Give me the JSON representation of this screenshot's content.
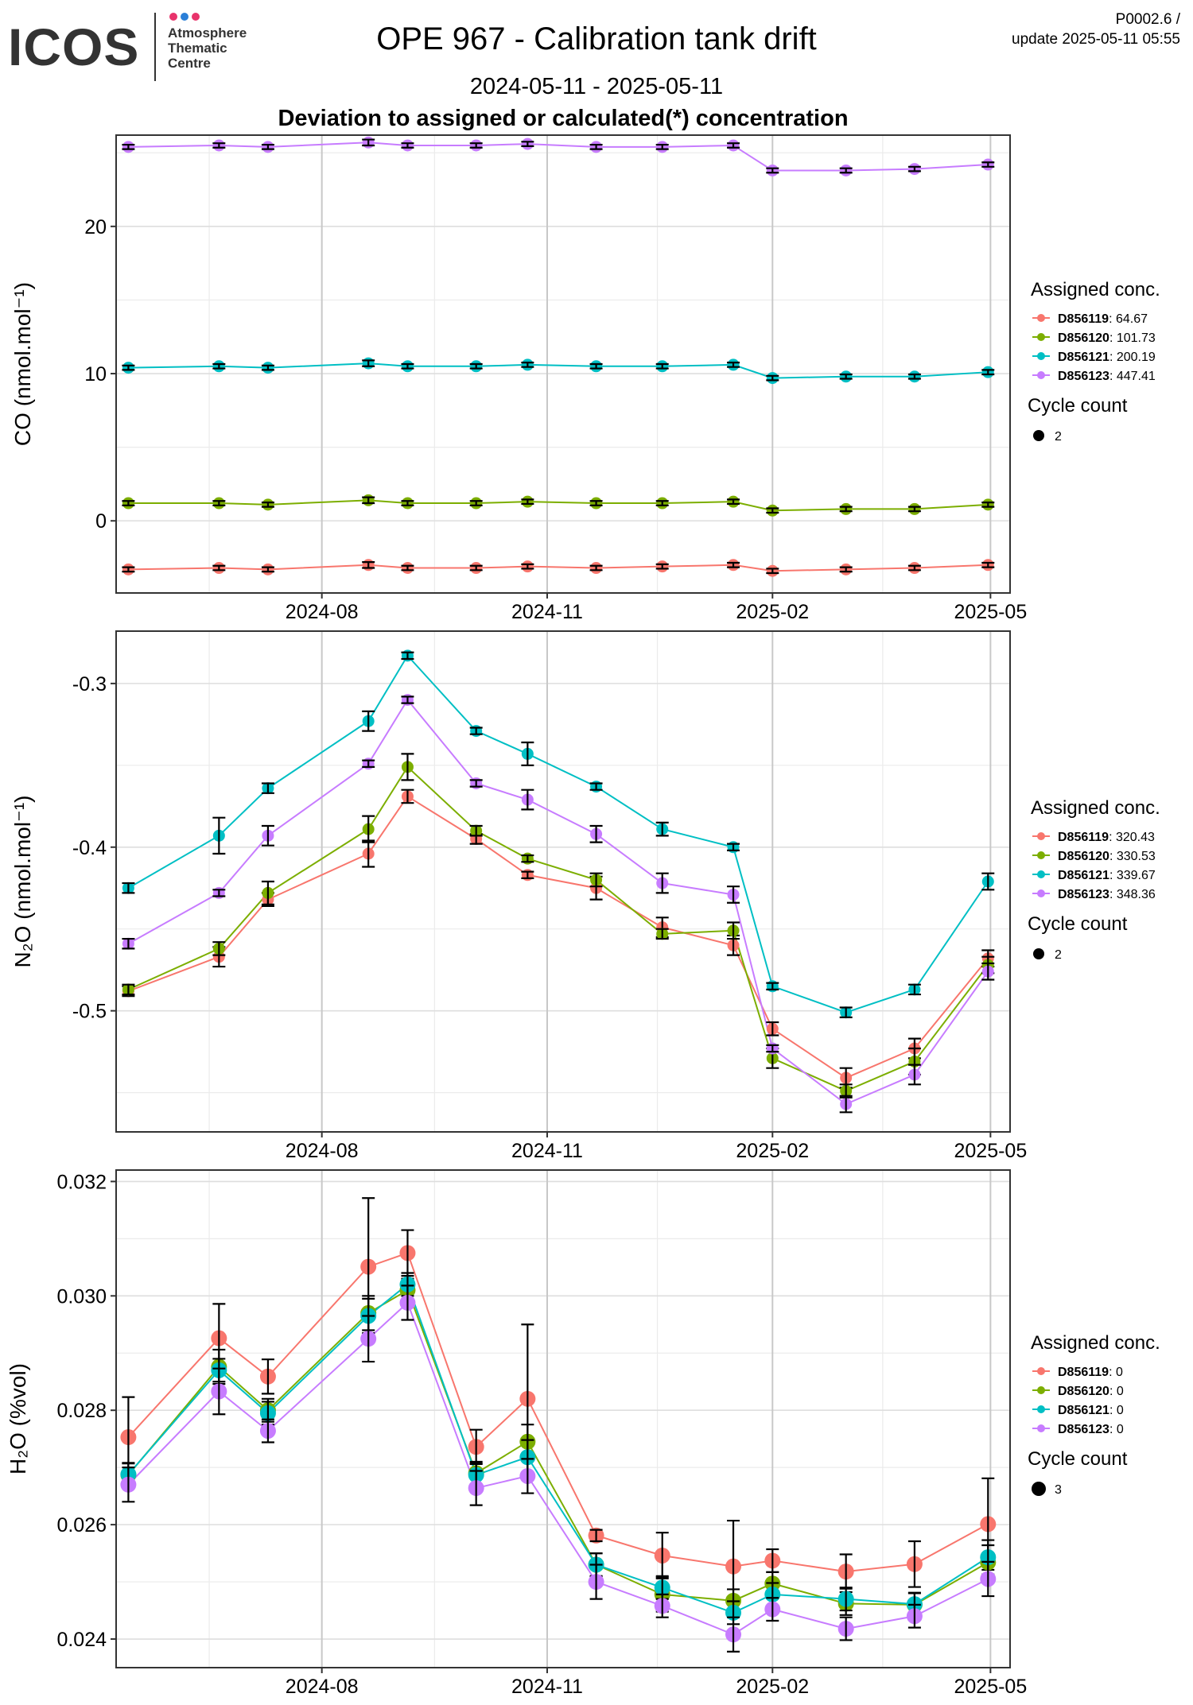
{
  "logo": {
    "text": "ICOS",
    "subtitle_lines": [
      "Atmosphere",
      "Thematic",
      "Centre"
    ],
    "dot_colors": [
      "#e8336b",
      "#2a7fd8",
      "#e8336b"
    ]
  },
  "header": {
    "title": "OPE 967 - Calibration tank drift",
    "date_range": "2024-05-11 - 2025-05-11",
    "subtitle": "Deviation to assigned or calculated(*) concentration",
    "code": "P0002.6 /",
    "update": "update  2025-05-11 05:55"
  },
  "series_colors": [
    "#F8766D",
    "#7CAE00",
    "#00BFC4",
    "#C77CFF"
  ],
  "chart_data": [
    {
      "type": "line",
      "ylabel": "CO (nmol.mol⁻¹)",
      "ylim": [
        -4.9,
        26.2
      ],
      "yticks": [
        0,
        10,
        20
      ],
      "ytick_labels": [
        "0",
        "10",
        "20"
      ],
      "xlim": [
        "2024-05-09",
        "2025-05-09"
      ],
      "xticks": [
        "2024-08-01",
        "2024-11-01",
        "2025-02-01",
        "2025-05-01"
      ],
      "xtick_labels": [
        "2024-08",
        "2024-11",
        "2025-02",
        "2025-05"
      ],
      "x": [
        "2024-05-14",
        "2024-06-20",
        "2024-07-10",
        "2024-08-20",
        "2024-09-05",
        "2024-10-03",
        "2024-10-24",
        "2024-11-21",
        "2024-12-18",
        "2025-01-16",
        "2025-02-01",
        "2025-03-03",
        "2025-03-31",
        "2025-04-30"
      ],
      "series": [
        {
          "name": "D856119",
          "values": [
            -3.3,
            -3.2,
            -3.3,
            -3.0,
            -3.2,
            -3.2,
            -3.1,
            -3.2,
            -3.1,
            -3.0,
            -3.4,
            -3.3,
            -3.2,
            -3.0
          ],
          "errors": [
            0.15,
            0.15,
            0.15,
            0.2,
            0.15,
            0.15,
            0.15,
            0.15,
            0.15,
            0.15,
            0.15,
            0.15,
            0.15,
            0.15
          ]
        },
        {
          "name": "D856120",
          "values": [
            1.2,
            1.2,
            1.1,
            1.4,
            1.2,
            1.2,
            1.3,
            1.2,
            1.2,
            1.3,
            0.7,
            0.8,
            0.8,
            1.1
          ],
          "errors": [
            0.15,
            0.15,
            0.15,
            0.2,
            0.15,
            0.15,
            0.15,
            0.15,
            0.15,
            0.15,
            0.15,
            0.15,
            0.15,
            0.15
          ]
        },
        {
          "name": "D856121",
          "values": [
            10.4,
            10.5,
            10.4,
            10.7,
            10.5,
            10.5,
            10.6,
            10.5,
            10.5,
            10.6,
            9.7,
            9.8,
            9.8,
            10.1
          ],
          "errors": [
            0.15,
            0.15,
            0.15,
            0.2,
            0.15,
            0.15,
            0.15,
            0.15,
            0.15,
            0.15,
            0.15,
            0.15,
            0.15,
            0.15
          ]
        },
        {
          "name": "D856123",
          "values": [
            25.4,
            25.5,
            25.4,
            25.7,
            25.5,
            25.5,
            25.6,
            25.4,
            25.4,
            25.5,
            23.8,
            23.8,
            23.9,
            24.2
          ],
          "errors": [
            0.15,
            0.15,
            0.15,
            0.2,
            0.15,
            0.15,
            0.15,
            0.15,
            0.15,
            0.15,
            0.15,
            0.15,
            0.15,
            0.15
          ]
        }
      ],
      "legend": {
        "title": "Assigned conc.",
        "entries": [
          {
            "tank": "D856119",
            "value": ": 64.67"
          },
          {
            "tank": "D856120",
            "value": ": 101.73"
          },
          {
            "tank": "D856121",
            "value": ": 200.19"
          },
          {
            "tank": "D856123",
            "value": ": 447.41"
          }
        ],
        "cycle_title": "Cycle count",
        "cycle_value": "2",
        "placement": "right"
      }
    },
    {
      "type": "line",
      "ylabel": "N₂O (nmol.mol⁻¹)",
      "ylim": [
        -0.574,
        -0.268
      ],
      "yticks": [
        -0.5,
        -0.4,
        -0.3
      ],
      "ytick_labels": [
        "-0.5",
        "-0.4",
        "-0.3"
      ],
      "xlim": [
        "2024-05-09",
        "2025-05-09"
      ],
      "xticks": [
        "2024-08-01",
        "2024-11-01",
        "2025-02-01",
        "2025-05-01"
      ],
      "xtick_labels": [
        "2024-08",
        "2024-11",
        "2025-02",
        "2025-05"
      ],
      "x": [
        "2024-05-14",
        "2024-06-20",
        "2024-07-10",
        "2024-08-20",
        "2024-09-05",
        "2024-10-03",
        "2024-10-24",
        "2024-11-21",
        "2024-12-18",
        "2025-01-16",
        "2025-02-01",
        "2025-03-03",
        "2025-03-31",
        "2025-04-30"
      ],
      "series": [
        {
          "name": "D856119",
          "values": [
            -0.488,
            -0.467,
            -0.432,
            -0.404,
            -0.369,
            -0.395,
            -0.417,
            -0.425,
            -0.449,
            -0.46,
            -0.511,
            -0.541,
            -0.523,
            -0.468
          ],
          "errors": [
            0.003,
            0.006,
            0.004,
            0.008,
            0.004,
            0.003,
            0.002,
            0.007,
            0.006,
            0.006,
            0.004,
            0.006,
            0.006,
            0.005
          ]
        },
        {
          "name": "D856120",
          "values": [
            -0.487,
            -0.462,
            -0.428,
            -0.389,
            -0.351,
            -0.39,
            -0.407,
            -0.42,
            -0.453,
            -0.451,
            -0.529,
            -0.549,
            -0.531,
            -0.472
          ],
          "errors": [
            0.003,
            0.004,
            0.007,
            0.008,
            0.008,
            0.003,
            0.002,
            0.004,
            0.003,
            0.005,
            0.006,
            0.004,
            0.008,
            0.005
          ]
        },
        {
          "name": "D856121",
          "values": [
            -0.425,
            -0.393,
            -0.364,
            -0.323,
            -0.283,
            -0.329,
            -0.343,
            -0.363,
            -0.389,
            -0.4,
            -0.485,
            -0.501,
            -0.487,
            -0.421
          ],
          "errors": [
            0.003,
            0.011,
            0.003,
            0.006,
            0.002,
            0.002,
            0.007,
            0.002,
            0.004,
            0.002,
            0.002,
            0.003,
            0.003,
            0.005
          ]
        },
        {
          "name": "D856123",
          "values": [
            -0.459,
            -0.428,
            -0.393,
            -0.349,
            -0.31,
            -0.361,
            -0.371,
            -0.392,
            -0.422,
            -0.429,
            -0.523,
            -0.557,
            -0.539,
            -0.476
          ],
          "errors": [
            0.003,
            0.002,
            0.006,
            0.002,
            0.002,
            0.002,
            0.006,
            0.005,
            0.006,
            0.005,
            0.002,
            0.005,
            0.006,
            0.005
          ]
        }
      ],
      "legend": {
        "title": "Assigned conc.",
        "entries": [
          {
            "tank": "D856119",
            "value": ": 320.43"
          },
          {
            "tank": "D856120",
            "value": ": 330.53"
          },
          {
            "tank": "D856121",
            "value": ": 339.67"
          },
          {
            "tank": "D856123",
            "value": ": 348.36"
          }
        ],
        "cycle_title": "Cycle count",
        "cycle_value": "2",
        "placement": "right"
      }
    },
    {
      "type": "line",
      "ylabel": "H₂O (%vol)",
      "ylim": [
        0.0235,
        0.0322
      ],
      "yticks": [
        0.024,
        0.026,
        0.028,
        0.03,
        0.032
      ],
      "ytick_labels": [
        "0.024",
        "0.026",
        "0.028",
        "0.030",
        "0.032"
      ],
      "xlim": [
        "2024-05-09",
        "2025-05-09"
      ],
      "xticks": [
        "2024-08-01",
        "2024-11-01",
        "2025-02-01",
        "2025-05-01"
      ],
      "xtick_labels": [
        "2024-08",
        "2024-11",
        "2025-02",
        "2025-05"
      ],
      "x": [
        "2024-05-14",
        "2024-06-20",
        "2024-07-10",
        "2024-08-20",
        "2024-09-05",
        "2024-10-03",
        "2024-10-24",
        "2024-11-21",
        "2024-12-18",
        "2025-01-16",
        "2025-02-01",
        "2025-03-03",
        "2025-03-31",
        "2025-04-30"
      ],
      "series": [
        {
          "name": "D856119",
          "values": [
            0.02753,
            0.02926,
            0.02859,
            0.03051,
            0.03075,
            0.02736,
            0.0282,
            0.02581,
            0.02546,
            0.02527,
            0.02537,
            0.02518,
            0.02531,
            0.02601
          ],
          "errors": [
            0.0007,
            0.0006,
            0.0003,
            0.0012,
            0.0004,
            0.0003,
            0.0013,
            0.0001,
            0.0004,
            0.0008,
            0.0002,
            0.0003,
            0.0004,
            0.0008
          ]
        },
        {
          "name": "D856120",
          "values": [
            0.02687,
            0.02876,
            0.028,
            0.0297,
            0.0301,
            0.0269,
            0.02745,
            0.0253,
            0.02478,
            0.02467,
            0.02497,
            0.02462,
            0.0246,
            0.02534
          ],
          "errors": [
            0.0002,
            0.0003,
            0.0002,
            0.0003,
            0.0002,
            0.0002,
            0.0003,
            0.0002,
            0.0003,
            0.0002,
            0.0002,
            0.0002,
            0.0002,
            0.0003
          ]
        },
        {
          "name": "D856121",
          "values": [
            0.02688,
            0.0287,
            0.02795,
            0.02965,
            0.0302,
            0.02687,
            0.02718,
            0.0253,
            0.0249,
            0.02446,
            0.02478,
            0.0247,
            0.02461,
            0.02543
          ],
          "errors": [
            0.0002,
            0.0002,
            0.0002,
            0.0003,
            0.0002,
            0.0002,
            0.0003,
            0.0002,
            0.0002,
            0.0002,
            0.0002,
            0.0002,
            0.0002,
            0.0003
          ]
        },
        {
          "name": "D856123",
          "values": [
            0.0267,
            0.02833,
            0.02764,
            0.02925,
            0.02988,
            0.02664,
            0.02685,
            0.025,
            0.02458,
            0.02408,
            0.02452,
            0.02418,
            0.0244,
            0.02505
          ],
          "errors": [
            0.0003,
            0.0004,
            0.0002,
            0.0004,
            0.0003,
            0.0003,
            0.0003,
            0.0003,
            0.0002,
            0.0003,
            0.0002,
            0.0002,
            0.0002,
            0.0003
          ]
        }
      ],
      "legend": {
        "title": "Assigned conc.",
        "entries": [
          {
            "tank": "D856119",
            "value": ": 0"
          },
          {
            "tank": "D856120",
            "value": ": 0"
          },
          {
            "tank": "D856121",
            "value": ": 0"
          },
          {
            "tank": "D856123",
            "value": ": 0"
          }
        ],
        "cycle_title": "Cycle count",
        "cycle_value": "3",
        "placement": "right"
      }
    }
  ]
}
